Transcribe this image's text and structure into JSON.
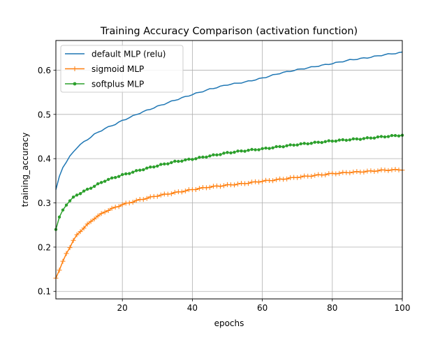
{
  "chart_data": {
    "type": "line",
    "title": "Training Accuracy Comparison (activation function)",
    "xlabel": "epochs",
    "ylabel": "training_accuracy",
    "xlim": [
      1,
      100
    ],
    "ylim": [
      0.083,
      0.667
    ],
    "x_ticks": [
      20,
      40,
      60,
      80,
      100
    ],
    "y_ticks": [
      0.1,
      0.2,
      0.3,
      0.4,
      0.5,
      0.6
    ],
    "grid": true,
    "legend_position": "top-left",
    "series": [
      {
        "name": "default MLP (relu)",
        "color": "#1f77b4",
        "marker": "none",
        "keypoints": [
          [
            1,
            0.33
          ],
          [
            2,
            0.36
          ],
          [
            3,
            0.38
          ],
          [
            4,
            0.393
          ],
          [
            5,
            0.405
          ],
          [
            6,
            0.415
          ],
          [
            7,
            0.425
          ],
          [
            8,
            0.432
          ],
          [
            10,
            0.443
          ],
          [
            12,
            0.455
          ],
          [
            15,
            0.468
          ],
          [
            18,
            0.478
          ],
          [
            20,
            0.486
          ],
          [
            25,
            0.503
          ],
          [
            30,
            0.518
          ],
          [
            35,
            0.532
          ],
          [
            40,
            0.545
          ],
          [
            45,
            0.557
          ],
          [
            50,
            0.567
          ],
          [
            55,
            0.573
          ],
          [
            60,
            0.582
          ],
          [
            65,
            0.593
          ],
          [
            70,
            0.601
          ],
          [
            75,
            0.608
          ],
          [
            80,
            0.615
          ],
          [
            85,
            0.623
          ],
          [
            90,
            0.628
          ],
          [
            95,
            0.635
          ],
          [
            100,
            0.64
          ]
        ]
      },
      {
        "name": "sigmoid MLP",
        "color": "#ff7f0e",
        "marker": "plus",
        "keypoints": [
          [
            1,
            0.13
          ],
          [
            2,
            0.148
          ],
          [
            3,
            0.168
          ],
          [
            4,
            0.185
          ],
          [
            5,
            0.2
          ],
          [
            6,
            0.215
          ],
          [
            7,
            0.227
          ],
          [
            8,
            0.236
          ],
          [
            10,
            0.251
          ],
          [
            12,
            0.265
          ],
          [
            15,
            0.28
          ],
          [
            18,
            0.29
          ],
          [
            20,
            0.296
          ],
          [
            25,
            0.307
          ],
          [
            30,
            0.316
          ],
          [
            35,
            0.323
          ],
          [
            40,
            0.33
          ],
          [
            45,
            0.336
          ],
          [
            50,
            0.34
          ],
          [
            55,
            0.344
          ],
          [
            60,
            0.349
          ],
          [
            65,
            0.353
          ],
          [
            70,
            0.358
          ],
          [
            75,
            0.362
          ],
          [
            80,
            0.366
          ],
          [
            85,
            0.369
          ],
          [
            90,
            0.371
          ],
          [
            95,
            0.374
          ],
          [
            100,
            0.375
          ]
        ]
      },
      {
        "name": "softplus MLP",
        "color": "#2ca02c",
        "marker": "dot",
        "keypoints": [
          [
            1,
            0.24
          ],
          [
            2,
            0.268
          ],
          [
            3,
            0.284
          ],
          [
            4,
            0.296
          ],
          [
            5,
            0.305
          ],
          [
            6,
            0.312
          ],
          [
            7,
            0.318
          ],
          [
            8,
            0.322
          ],
          [
            10,
            0.33
          ],
          [
            12,
            0.338
          ],
          [
            15,
            0.35
          ],
          [
            18,
            0.358
          ],
          [
            20,
            0.363
          ],
          [
            25,
            0.374
          ],
          [
            30,
            0.384
          ],
          [
            35,
            0.393
          ],
          [
            40,
            0.399
          ],
          [
            45,
            0.406
          ],
          [
            50,
            0.413
          ],
          [
            55,
            0.418
          ],
          [
            60,
            0.422
          ],
          [
            65,
            0.427
          ],
          [
            70,
            0.432
          ],
          [
            75,
            0.436
          ],
          [
            80,
            0.44
          ],
          [
            85,
            0.443
          ],
          [
            90,
            0.446
          ],
          [
            95,
            0.45
          ],
          [
            100,
            0.453
          ]
        ]
      }
    ]
  }
}
